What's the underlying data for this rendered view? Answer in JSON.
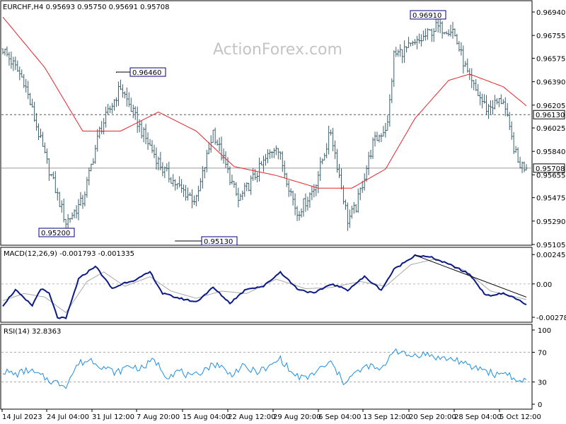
{
  "header": {
    "symbol_line": "EURCHF,H4  0.95693 0.95750 0.95691 0.95708",
    "watermark": "ActionForex.com"
  },
  "chart_data": [
    {
      "type": "candlestick",
      "panel": "price",
      "colors": {
        "bars": "#3a5f6b",
        "moving_average": "#e8232a",
        "levels": "#555555",
        "current": "#9a9a9a"
      },
      "y_ticks": [
        "0.96940",
        "0.96755",
        "0.96575",
        "0.96390",
        "0.96205",
        "0.96025",
        "0.95840",
        "0.95655",
        "0.95475",
        "0.95290",
        "0.95105"
      ],
      "ylim": [
        0.95105,
        0.9694
      ],
      "x_ticks": [
        "14 Jul 2023",
        "24 Jul 04:00",
        "31 Jul 12:00",
        "7 Aug 20:00",
        "15 Aug 04:00",
        "22 Aug 12:00",
        "29 Aug 20:00",
        "6 Sep 04:00",
        "13 Sep 12:00",
        "20 Sep 20:00",
        "28 Sep 04:00",
        "5 Oct 12:00"
      ],
      "horizontal_levels": [
        {
          "label": "0.96130",
          "value": 0.9613,
          "style": "dashed"
        },
        {
          "label": "0.95708",
          "value": 0.95708,
          "style": "solid"
        }
      ],
      "annotations": [
        {
          "label": "0.96910",
          "value": 0.9691
        },
        {
          "label": "0.96460",
          "value": 0.9646
        },
        {
          "label": "0.95200",
          "value": 0.952
        },
        {
          "label": "0.95130",
          "value": 0.9513
        }
      ],
      "key_points": [
        {
          "bar": 0,
          "close": 0.9665
        },
        {
          "bar": 10,
          "close": 0.964
        },
        {
          "bar": 20,
          "close": 0.958
        },
        {
          "bar": 30,
          "close": 0.9528
        },
        {
          "bar": 38,
          "close": 0.9545
        },
        {
          "bar": 46,
          "close": 0.96
        },
        {
          "bar": 56,
          "close": 0.9635
        },
        {
          "bar": 66,
          "close": 0.96
        },
        {
          "bar": 76,
          "close": 0.957
        },
        {
          "bar": 84,
          "close": 0.9555
        },
        {
          "bar": 92,
          "close": 0.9545
        },
        {
          "bar": 100,
          "close": 0.96
        },
        {
          "bar": 112,
          "close": 0.9545
        },
        {
          "bar": 122,
          "close": 0.957
        },
        {
          "bar": 130,
          "close": 0.959
        },
        {
          "bar": 140,
          "close": 0.9535
        },
        {
          "bar": 148,
          "close": 0.9555
        },
        {
          "bar": 156,
          "close": 0.96
        },
        {
          "bar": 164,
          "close": 0.953
        },
        {
          "bar": 168,
          "close": 0.954
        },
        {
          "bar": 176,
          "close": 0.959
        },
        {
          "bar": 183,
          "close": 0.9605
        },
        {
          "bar": 186,
          "close": 0.966
        },
        {
          "bar": 196,
          "close": 0.9668
        },
        {
          "bar": 206,
          "close": 0.9682
        },
        {
          "bar": 214,
          "close": 0.968
        },
        {
          "bar": 222,
          "close": 0.964
        },
        {
          "bar": 230,
          "close": 0.9618
        },
        {
          "bar": 238,
          "close": 0.9625
        },
        {
          "bar": 241,
          "close": 0.96
        },
        {
          "bar": 245,
          "close": 0.9575
        },
        {
          "bar": 249,
          "close": 0.95708
        }
      ],
      "moving_average_points": [
        {
          "bar": 0,
          "value": 0.969
        },
        {
          "bar": 20,
          "value": 0.965
        },
        {
          "bar": 38,
          "value": 0.96
        },
        {
          "bar": 56,
          "value": 0.96
        },
        {
          "bar": 74,
          "value": 0.9615
        },
        {
          "bar": 92,
          "value": 0.96
        },
        {
          "bar": 110,
          "value": 0.9572
        },
        {
          "bar": 130,
          "value": 0.9565
        },
        {
          "bar": 150,
          "value": 0.9555
        },
        {
          "bar": 166,
          "value": 0.9555
        },
        {
          "bar": 182,
          "value": 0.957
        },
        {
          "bar": 196,
          "value": 0.961
        },
        {
          "bar": 212,
          "value": 0.964
        },
        {
          "bar": 222,
          "value": 0.9645
        },
        {
          "bar": 238,
          "value": 0.9635
        },
        {
          "bar": 249,
          "value": 0.962
        }
      ]
    },
    {
      "type": "line",
      "panel": "macd",
      "title": "MACD(12,26,9) -0.001793 -0.001335",
      "y_ticks": [
        "0.00245",
        "0.00",
        "-0.002789"
      ],
      "ylim": [
        -0.0032,
        0.0027
      ],
      "colors": {
        "macd": "#0a1a86",
        "signal": "#a8a8a8",
        "trendline": "#000000"
      },
      "macd_points": [
        {
          "bar": 0,
          "value": -0.0018
        },
        {
          "bar": 6,
          "value": -0.0005
        },
        {
          "bar": 10,
          "value": -0.0012
        },
        {
          "bar": 14,
          "value": -0.0018
        },
        {
          "bar": 18,
          "value": -0.0004
        },
        {
          "bar": 22,
          "value": -0.0008
        },
        {
          "bar": 26,
          "value": -0.0028
        },
        {
          "bar": 30,
          "value": -0.0029
        },
        {
          "bar": 36,
          "value": 0.0004
        },
        {
          "bar": 44,
          "value": 0.0015
        },
        {
          "bar": 52,
          "value": -0.0004
        },
        {
          "bar": 58,
          "value": 0.0001
        },
        {
          "bar": 64,
          "value": 0.0004
        },
        {
          "bar": 70,
          "value": 0.001
        },
        {
          "bar": 76,
          "value": -0.0008
        },
        {
          "bar": 84,
          "value": -0.0012
        },
        {
          "bar": 92,
          "value": -0.0015
        },
        {
          "bar": 100,
          "value": -0.0003
        },
        {
          "bar": 108,
          "value": -0.0016
        },
        {
          "bar": 116,
          "value": -0.0004
        },
        {
          "bar": 124,
          "value": -0.0002
        },
        {
          "bar": 132,
          "value": 0.001
        },
        {
          "bar": 140,
          "value": -0.0004
        },
        {
          "bar": 148,
          "value": -0.0008
        },
        {
          "bar": 156,
          "value": 0.0
        },
        {
          "bar": 164,
          "value": -0.0005
        },
        {
          "bar": 172,
          "value": 0.0006
        },
        {
          "bar": 180,
          "value": -0.0005
        },
        {
          "bar": 186,
          "value": 0.0012
        },
        {
          "bar": 196,
          "value": 0.0024
        },
        {
          "bar": 204,
          "value": 0.0022
        },
        {
          "bar": 214,
          "value": 0.0015
        },
        {
          "bar": 222,
          "value": 0.0008
        },
        {
          "bar": 230,
          "value": -0.001
        },
        {
          "bar": 238,
          "value": -0.0008
        },
        {
          "bar": 244,
          "value": -0.0012
        },
        {
          "bar": 249,
          "value": -0.0018
        }
      ],
      "signal_points": [
        {
          "bar": 0,
          "value": -0.0014
        },
        {
          "bar": 10,
          "value": -0.0008
        },
        {
          "bar": 20,
          "value": -0.0011
        },
        {
          "bar": 30,
          "value": -0.0024
        },
        {
          "bar": 40,
          "value": 0.0002
        },
        {
          "bar": 48,
          "value": 0.001
        },
        {
          "bar": 58,
          "value": -0.0002
        },
        {
          "bar": 70,
          "value": 0.0006
        },
        {
          "bar": 80,
          "value": -0.0006
        },
        {
          "bar": 92,
          "value": -0.0012
        },
        {
          "bar": 104,
          "value": -0.0006
        },
        {
          "bar": 116,
          "value": -0.0008
        },
        {
          "bar": 130,
          "value": 0.0004
        },
        {
          "bar": 144,
          "value": -0.0004
        },
        {
          "bar": 156,
          "value": -0.0003
        },
        {
          "bar": 170,
          "value": 0.0002
        },
        {
          "bar": 182,
          "value": -0.0002
        },
        {
          "bar": 194,
          "value": 0.0016
        },
        {
          "bar": 206,
          "value": 0.0021
        },
        {
          "bar": 220,
          "value": 0.0011
        },
        {
          "bar": 232,
          "value": -0.0006
        },
        {
          "bar": 249,
          "value": -0.0013
        }
      ],
      "trendline": [
        {
          "bar": 196,
          "value": 0.0024
        },
        {
          "bar": 249,
          "value": -0.0011
        }
      ]
    },
    {
      "type": "line",
      "panel": "rsi",
      "title": "RSI(14) 32.8363",
      "y_ticks": [
        "100",
        "70",
        "30",
        "0"
      ],
      "ylim": [
        0,
        100
      ],
      "levels": [
        70,
        30
      ],
      "colors": {
        "rsi": "#1e8ee6",
        "levels": "#aaaaaa"
      },
      "points": [
        {
          "bar": 0,
          "value": 45
        },
        {
          "bar": 6,
          "value": 40
        },
        {
          "bar": 12,
          "value": 46
        },
        {
          "bar": 18,
          "value": 38
        },
        {
          "bar": 24,
          "value": 30
        },
        {
          "bar": 30,
          "value": 26
        },
        {
          "bar": 36,
          "value": 55
        },
        {
          "bar": 42,
          "value": 60
        },
        {
          "bar": 48,
          "value": 50
        },
        {
          "bar": 54,
          "value": 42
        },
        {
          "bar": 60,
          "value": 52
        },
        {
          "bar": 66,
          "value": 48
        },
        {
          "bar": 72,
          "value": 60
        },
        {
          "bar": 78,
          "value": 38
        },
        {
          "bar": 84,
          "value": 45
        },
        {
          "bar": 90,
          "value": 35
        },
        {
          "bar": 96,
          "value": 48
        },
        {
          "bar": 102,
          "value": 55
        },
        {
          "bar": 108,
          "value": 40
        },
        {
          "bar": 114,
          "value": 50
        },
        {
          "bar": 120,
          "value": 44
        },
        {
          "bar": 126,
          "value": 48
        },
        {
          "bar": 132,
          "value": 62
        },
        {
          "bar": 138,
          "value": 40
        },
        {
          "bar": 144,
          "value": 34
        },
        {
          "bar": 150,
          "value": 46
        },
        {
          "bar": 156,
          "value": 56
        },
        {
          "bar": 162,
          "value": 30
        },
        {
          "bar": 168,
          "value": 42
        },
        {
          "bar": 174,
          "value": 52
        },
        {
          "bar": 180,
          "value": 45
        },
        {
          "bar": 186,
          "value": 75
        },
        {
          "bar": 192,
          "value": 65
        },
        {
          "bar": 200,
          "value": 68
        },
        {
          "bar": 208,
          "value": 62
        },
        {
          "bar": 216,
          "value": 60
        },
        {
          "bar": 222,
          "value": 50
        },
        {
          "bar": 228,
          "value": 48
        },
        {
          "bar": 234,
          "value": 40
        },
        {
          "bar": 240,
          "value": 43
        },
        {
          "bar": 244,
          "value": 30
        },
        {
          "bar": 249,
          "value": 33
        }
      ]
    }
  ]
}
